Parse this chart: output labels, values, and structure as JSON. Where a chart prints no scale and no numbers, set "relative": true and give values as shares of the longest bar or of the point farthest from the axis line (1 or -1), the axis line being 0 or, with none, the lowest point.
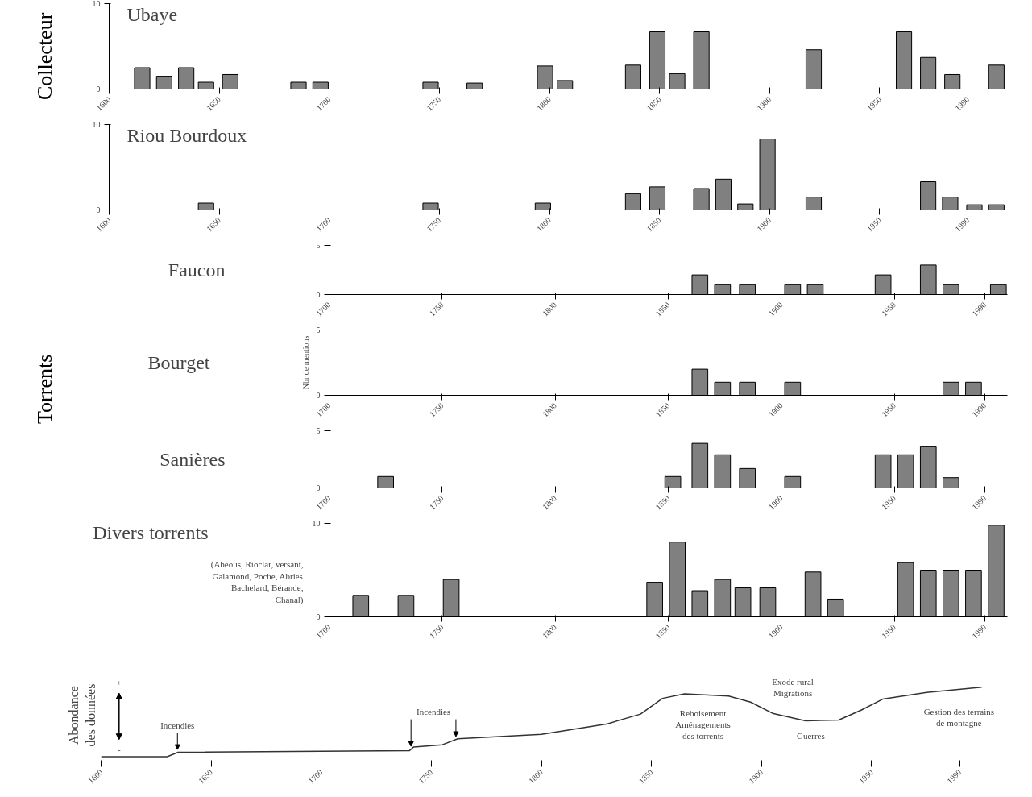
{
  "chart_data": [
    {
      "type": "bar",
      "title": "Ubaye",
      "ylabel": "Collecteur",
      "color": "#808080",
      "x": [
        1615,
        1625,
        1635,
        1644,
        1655,
        1686,
        1696,
        1746,
        1766,
        1798,
        1807,
        1838,
        1849,
        1858,
        1869,
        1920,
        1961,
        1972,
        1983,
        2003
      ],
      "values": [
        2.5,
        1.5,
        2.5,
        0.8,
        1.7,
        0.8,
        0.8,
        0.8,
        0.7,
        2.7,
        1.0,
        2.8,
        6.7,
        1.8,
        6.7,
        4.6,
        6.7,
        3.7,
        1.7,
        2.8
      ],
      "xlim": [
        1600,
        2008
      ],
      "xticks": [
        1600,
        1650,
        1700,
        1750,
        1800,
        1850,
        1900,
        1950,
        1990
      ],
      "ylim": [
        0,
        10
      ],
      "yticks": [
        0,
        10
      ]
    },
    {
      "type": "bar",
      "title": "Riou Bourdoux",
      "color": "#808080",
      "x": [
        1644,
        1746,
        1797,
        1838,
        1849,
        1869,
        1879,
        1889,
        1899,
        1920,
        1972,
        1982,
        1993,
        2003
      ],
      "values": [
        0.8,
        0.8,
        0.8,
        1.9,
        2.7,
        2.5,
        3.6,
        0.7,
        8.3,
        1.5,
        3.3,
        1.5,
        0.6,
        0.6
      ],
      "xlim": [
        1600,
        2008
      ],
      "xticks": [
        1600,
        1650,
        1700,
        1750,
        1800,
        1850,
        1900,
        1950,
        1990
      ],
      "ylim": [
        0,
        10
      ],
      "yticks": [
        0,
        10
      ]
    },
    {
      "type": "bar",
      "title": "Faucon",
      "color": "#808080",
      "x": [
        1864,
        1874,
        1885,
        1905,
        1915,
        1945,
        1965,
        1975,
        1996
      ],
      "values": [
        2,
        1,
        1,
        1,
        1,
        2,
        3,
        1,
        1
      ],
      "xlim": [
        1700,
        2000
      ],
      "xticks": [
        1700,
        1750,
        1800,
        1850,
        1900,
        1950,
        1990
      ],
      "ylim": [
        0,
        5
      ],
      "yticks": [
        0,
        5
      ]
    },
    {
      "type": "bar",
      "title": "Bourget",
      "ylabel": "Nbr de mentions",
      "annotations": [
        "Torrents"
      ],
      "color": "#808080",
      "x": [
        1864,
        1874,
        1885,
        1905,
        1975,
        1985
      ],
      "values": [
        2,
        1,
        1,
        1,
        1,
        1
      ],
      "xlim": [
        1700,
        2000
      ],
      "xticks": [
        1700,
        1750,
        1800,
        1850,
        1900,
        1950,
        1990
      ],
      "ylim": [
        0,
        5
      ],
      "yticks": [
        0,
        5
      ]
    },
    {
      "type": "bar",
      "title": "Sanières",
      "color": "#808080",
      "x": [
        1725,
        1852,
        1864,
        1874,
        1885,
        1905,
        1945,
        1955,
        1965,
        1975
      ],
      "values": [
        1,
        1,
        3.9,
        2.9,
        1.7,
        1,
        2.9,
        2.9,
        3.6,
        0.9
      ],
      "xlim": [
        1700,
        2000
      ],
      "xticks": [
        1700,
        1750,
        1800,
        1850,
        1900,
        1950,
        1990
      ],
      "ylim": [
        0,
        5
      ],
      "yticks": [
        0,
        5
      ]
    },
    {
      "type": "bar",
      "title": "Divers torrents",
      "subtitle": "(Abéous, Rioclar, versant, Galamond, Poche, Abries Bachelard, Bérande, Chanal)",
      "color": "#808080",
      "x": [
        1714,
        1734,
        1754,
        1844,
        1854,
        1864,
        1874,
        1883,
        1894,
        1914,
        1924,
        1955,
        1965,
        1975,
        1985,
        1995
      ],
      "values": [
        2.3,
        2.3,
        4,
        3.7,
        8,
        2.8,
        4,
        3.1,
        3.1,
        4.8,
        1.9,
        5.8,
        5,
        5,
        5,
        9.8
      ],
      "xlim": [
        1700,
        2000
      ],
      "xticks": [
        1700,
        1750,
        1800,
        1850,
        1900,
        1950,
        1990
      ],
      "ylim": [
        0,
        10
      ],
      "yticks": [
        0,
        10
      ]
    },
    {
      "type": "line",
      "ylabel": "Abondance des données",
      "relative": true,
      "color": "#333333",
      "x": [
        1600,
        1630,
        1635,
        1740,
        1742,
        1755,
        1762,
        1800,
        1830,
        1845,
        1855,
        1865,
        1885,
        1895,
        1905,
        1920,
        1935,
        1945,
        1955,
        1975,
        2000
      ],
      "values": [
        0.07,
        0.07,
        0.13,
        0.15,
        0.2,
        0.23,
        0.31,
        0.37,
        0.51,
        0.64,
        0.85,
        0.91,
        0.88,
        0.8,
        0.65,
        0.55,
        0.56,
        0.69,
        0.84,
        0.93,
        1
      ],
      "xlim": [
        1600,
        2008
      ],
      "xticks": [
        1600,
        1650,
        1700,
        1750,
        1800,
        1850,
        1900,
        1950,
        1990
      ],
      "annotations": [
        "+",
        "-",
        "Incendies",
        "Incendies",
        "Reboisement\nAménagements\ndes torrents",
        "Exode rural\nMigrations",
        "Guerres",
        "Gestion des terrains\nde montagne"
      ]
    }
  ]
}
